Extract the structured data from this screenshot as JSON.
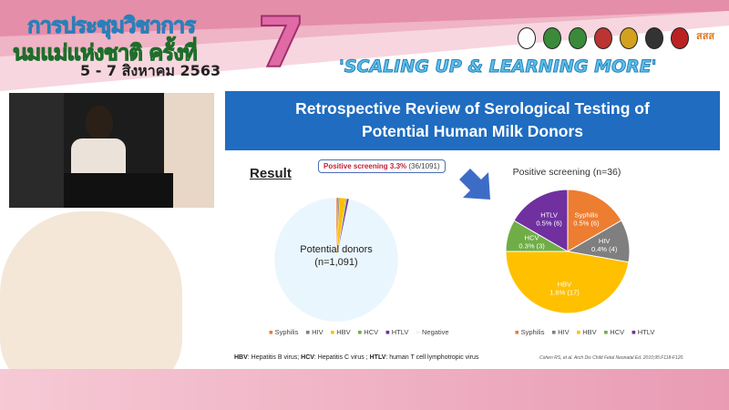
{
  "header": {
    "thai_line1": "การประชุมวิชาการ",
    "thai_line2": "นมแม่แห่งชาติ ครั้งที่",
    "date": "5 - 7 สิงหาคม 2563",
    "edition": "7",
    "slogan": "'SCALING UP & LEARNING MORE'",
    "logos_text": "สสส"
  },
  "slide": {
    "title_line1": "Retrospective Review of Serological Testing of",
    "title_line2": "Potential Human Milk Donors",
    "result_label": "Result",
    "callout_bold": "Positive screening 3.3%",
    "callout_rest": "(36/1091)",
    "footnote_parts": [
      "HBV",
      ": Hepatitis B virus; ",
      "HCV",
      ": Hepatitis C virus ; ",
      "HTLV",
      ": human T cell lymphotropic virus"
    ],
    "citation": "Cohen RS, et al. Arch Dis Child Fetal Neonatal Ed. 2010;95:F118-F120."
  },
  "chart_data": [
    {
      "type": "pie",
      "title": "",
      "center_label": [
        "Potential donors",
        "(n=1,091)"
      ],
      "categories": [
        "Syphilis",
        "HIV",
        "HBV",
        "HCV",
        "HTLV",
        "Negative"
      ],
      "values": [
        6,
        4,
        17,
        3,
        6,
        1055
      ],
      "colors": [
        "#ed7d31",
        "#7f7f7f",
        "#ffc000",
        "#70ad47",
        "#7030a0",
        "#eaf6fd"
      ],
      "legend": "bottom"
    },
    {
      "type": "pie",
      "title": "Positive screening (n=36)",
      "categories": [
        "Syphilis",
        "HIV",
        "HBV",
        "HCV",
        "HTLV"
      ],
      "values": [
        6,
        4,
        17,
        3,
        6
      ],
      "data_labels": [
        "0.5% (6)",
        "0.4% (4)",
        "1.6% (17)",
        "0.3% (3)",
        "0.5% (6)"
      ],
      "colors": [
        "#ed7d31",
        "#7f7f7f",
        "#ffc000",
        "#70ad47",
        "#7030a0"
      ],
      "legend": "bottom"
    }
  ]
}
